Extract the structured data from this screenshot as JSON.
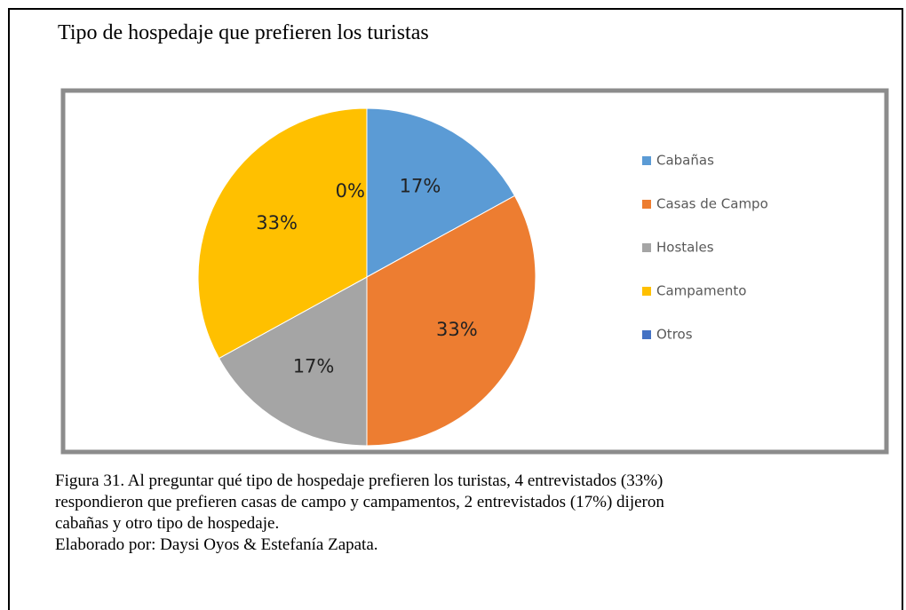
{
  "chart_data": {
    "type": "pie",
    "title": "Tipo de hospedaje que prefieren los turistas",
    "categories": [
      "Cabañas",
      "Casas de Campo",
      "Hostales",
      "Campamento",
      "Otros"
    ],
    "values": [
      17,
      33,
      17,
      33,
      0
    ],
    "value_labels": [
      "17%",
      "33%",
      "17%",
      "33%",
      "0%"
    ],
    "colors": [
      "#5b9bd5",
      "#ed7d31",
      "#a5a5a5",
      "#ffc000",
      "#4472c4"
    ],
    "legend": "right"
  },
  "caption": [
    "Figura 31.   Al preguntar qué tipo de hospedaje prefieren los turistas, 4 entrevistados (33%)",
    "respondieron  que prefieren casas de campo y campamentos,  2 entrevistados (17%) dijeron",
    "cabañas y otro tipo de hospedaje.",
    "Elaborado por: Daysi Oyos & Estefanía Zapata."
  ]
}
